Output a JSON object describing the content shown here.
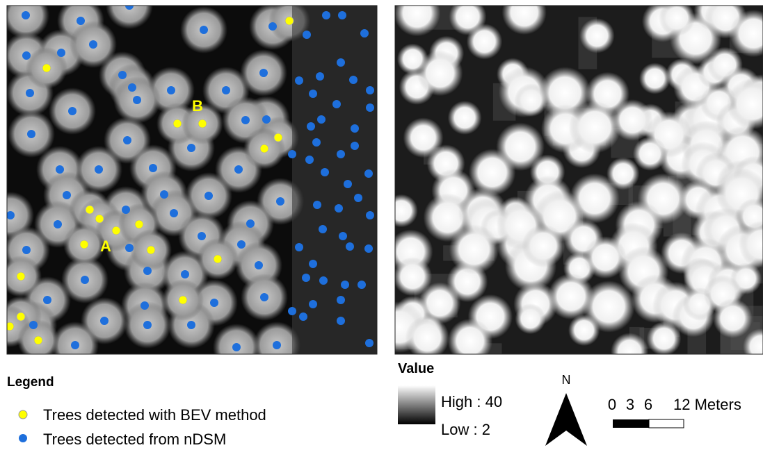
{
  "map_labels": {
    "a": "A",
    "b": "B"
  },
  "legend": {
    "title": "Legend",
    "items": [
      "Trees detected with BEV method",
      "Trees detected from nDSM"
    ]
  },
  "value_legend": {
    "title": "Value",
    "high": "High : 40",
    "low": "Low : 2"
  },
  "north": "N",
  "scale_bar": {
    "labels": [
      "0",
      "3",
      "6",
      "12 Meters"
    ]
  }
}
